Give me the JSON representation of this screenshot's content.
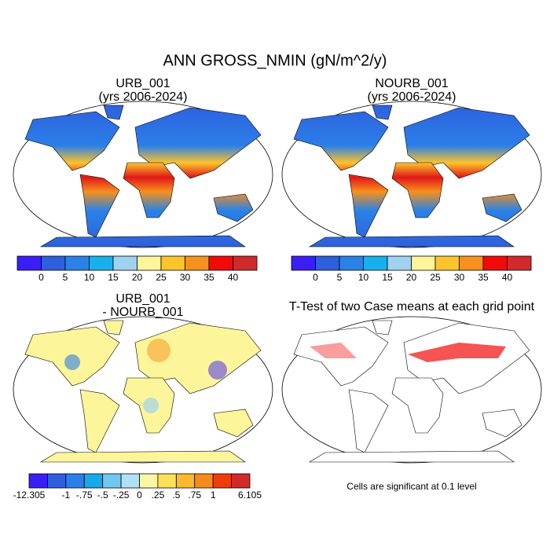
{
  "title": "ANN GROSS_NMIN (gN/m^2/y)",
  "panels": [
    {
      "title": "URB_001",
      "subtitle": "(yrs 2006-2024)"
    },
    {
      "title": "NOURB_001",
      "subtitle": "(yrs 2006-2024)"
    },
    {
      "title": "URB_001",
      "subtitle": "- NOURB_001"
    },
    {
      "title": "T-Test of two Case means at each grid point"
    }
  ],
  "colorbars": [
    {
      "colors": [
        "#3a1ff5",
        "#2e5fdd",
        "#2a82e6",
        "#18b0ec",
        "#9fd2ef",
        "#fdf59a",
        "#fdc42b",
        "#f7901c",
        "#f20a0a",
        "#d02a2a"
      ],
      "labels": [
        null,
        0,
        5,
        10,
        15,
        20,
        25,
        30,
        35,
        40,
        null
      ]
    },
    {
      "colors": [
        "#3a1ff5",
        "#2e5fdd",
        "#2a82e6",
        "#18b0ec",
        "#9fd2ef",
        "#fdf59a",
        "#fdc42b",
        "#f7901c",
        "#f20a0a",
        "#d02a2a"
      ],
      "labels": [
        null,
        0,
        5,
        10,
        15,
        20,
        25,
        30,
        35,
        40,
        null
      ]
    },
    {
      "colors": [
        "#3a1ff5",
        "#2e5fdd",
        "#2a7fe8",
        "#18a8ec",
        "#6fc8f0",
        "#b0e0f5",
        "#fdf7a5",
        "#fde05a",
        "#fbba2c",
        "#f78a1e",
        "#f03c0c",
        "#d02a2a"
      ],
      "labels": [
        -12.305,
        null,
        -1,
        {
          "value": -0.75,
          "label": "-.75"
        },
        {
          "value": -0.5,
          "label": "-.5"
        },
        {
          "value": -0.25,
          "label": "-.25"
        },
        0,
        {
          "value": 0.25,
          "label": ".25"
        },
        {
          "value": 0.5,
          "label": ".5"
        },
        {
          "value": 0.75,
          "label": ".75"
        },
        1,
        null,
        6.105
      ]
    }
  ],
  "note": "Cells are significant at 0.1 level"
}
